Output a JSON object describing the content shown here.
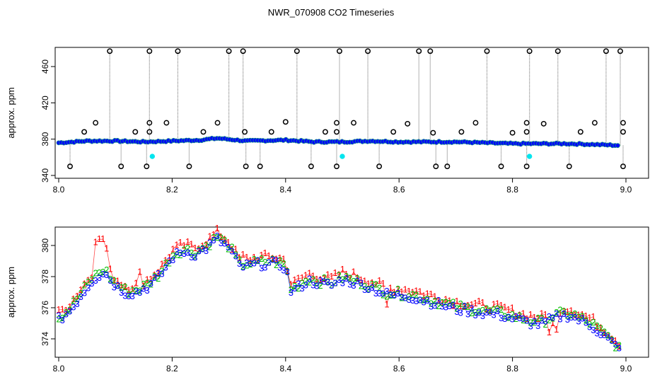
{
  "chart_data": [
    {
      "type": "scatter",
      "title": "NWR_070908  CO2 Timeseries",
      "xlabel": "",
      "ylabel": "approx. ppm",
      "xlim": [
        8.0,
        9.0
      ],
      "ylim": [
        340,
        478
      ],
      "xticks": [
        "8.0",
        "8.2",
        "8.4",
        "8.6",
        "8.8",
        "9.0"
      ],
      "yticks": [
        "340",
        "380",
        "420",
        "460"
      ],
      "grid": false,
      "baseline": {
        "x": [
          8.0,
          8.05,
          8.1,
          8.15,
          8.2,
          8.25,
          8.28,
          8.33,
          8.4,
          8.45,
          8.5,
          8.55,
          8.6,
          8.65,
          8.7,
          8.75,
          8.8,
          8.85,
          8.9,
          8.95,
          8.99
        ],
        "y": [
          376,
          378,
          378,
          377,
          378,
          379,
          381,
          378,
          379,
          377,
          377,
          378,
          377,
          377,
          377,
          376,
          375,
          375,
          375,
          374,
          373
        ]
      },
      "outliers_high": [
        8.09,
        8.16,
        8.21,
        8.3,
        8.325,
        8.42,
        8.495,
        8.545,
        8.635,
        8.655,
        8.755,
        8.83,
        8.88,
        8.965,
        8.99
      ],
      "outliers_low": [
        8.02,
        8.11,
        8.155,
        8.23,
        8.33,
        8.355,
        8.445,
        8.49,
        8.565,
        8.665,
        8.685,
        8.78,
        8.825,
        8.9,
        8.995
      ],
      "outliers_mid": [
        {
          "x": 8.045,
          "y": 388
        },
        {
          "x": 8.065,
          "y": 398
        },
        {
          "x": 8.135,
          "y": 388
        },
        {
          "x": 8.16,
          "y": 398
        },
        {
          "x": 8.16,
          "y": 388
        },
        {
          "x": 8.19,
          "y": 398
        },
        {
          "x": 8.255,
          "y": 388
        },
        {
          "x": 8.28,
          "y": 398
        },
        {
          "x": 8.328,
          "y": 388
        },
        {
          "x": 8.375,
          "y": 388
        },
        {
          "x": 8.4,
          "y": 399
        },
        {
          "x": 8.47,
          "y": 388
        },
        {
          "x": 8.49,
          "y": 398
        },
        {
          "x": 8.49,
          "y": 388
        },
        {
          "x": 8.52,
          "y": 398
        },
        {
          "x": 8.59,
          "y": 388
        },
        {
          "x": 8.615,
          "y": 397
        },
        {
          "x": 8.66,
          "y": 387
        },
        {
          "x": 8.71,
          "y": 388
        },
        {
          "x": 8.735,
          "y": 398
        },
        {
          "x": 8.8,
          "y": 387
        },
        {
          "x": 8.825,
          "y": 398
        },
        {
          "x": 8.825,
          "y": 388
        },
        {
          "x": 8.855,
          "y": 397
        },
        {
          "x": 8.92,
          "y": 388
        },
        {
          "x": 8.945,
          "y": 398
        },
        {
          "x": 8.995,
          "y": 398
        },
        {
          "x": 8.995,
          "y": 388
        }
      ],
      "cyan_points": [
        {
          "x": 8.165,
          "y": 361
        },
        {
          "x": 8.5,
          "y": 361
        },
        {
          "x": 8.83,
          "y": 361
        }
      ],
      "marker_colors": {
        "baseline_fill": "#0000ff",
        "baseline_edge": "#ff0000",
        "outlier": "#000000",
        "cyan": "#00e5ee",
        "spike": "#808080"
      }
    },
    {
      "type": "scatter",
      "title": "",
      "xlabel": "",
      "ylabel": "approx. ppm",
      "xlim": [
        8.0,
        9.0
      ],
      "ylim": [
        373.0,
        381.0
      ],
      "xticks": [
        "8.0",
        "8.2",
        "8.4",
        "8.6",
        "8.8",
        "9.0"
      ],
      "yticks": [
        "374",
        "376",
        "378",
        "380"
      ],
      "grid": false,
      "series": [
        {
          "name": "1",
          "label": "1",
          "color": "#ff0000"
        },
        {
          "name": "2",
          "label": "2",
          "color": "#00bb00"
        },
        {
          "name": "3",
          "label": "3",
          "color": "#0000ff"
        }
      ],
      "curve": {
        "x": [
          8.0,
          8.02,
          8.04,
          8.06,
          8.08,
          8.1,
          8.12,
          8.14,
          8.16,
          8.18,
          8.2,
          8.22,
          8.24,
          8.26,
          8.28,
          8.3,
          8.32,
          8.34,
          8.36,
          8.38,
          8.4,
          8.41,
          8.44,
          8.48,
          8.5,
          8.54,
          8.58,
          8.62,
          8.66,
          8.7,
          8.74,
          8.78,
          8.82,
          8.85,
          8.88,
          8.9,
          8.94,
          8.97,
          8.99
        ],
        "y": [
          375.4,
          376.0,
          377.0,
          378.0,
          378.5,
          377.6,
          377.1,
          377.2,
          377.6,
          378.3,
          379.4,
          379.8,
          379.6,
          380.0,
          380.6,
          380.0,
          378.8,
          378.9,
          379.0,
          379.0,
          378.8,
          377.2,
          377.9,
          377.6,
          378.0,
          377.6,
          377.0,
          376.9,
          376.5,
          376.1,
          375.9,
          375.7,
          375.3,
          375.1,
          375.6,
          375.7,
          375.0,
          374.1,
          373.4
        ]
      },
      "spikes": [
        {
          "x": 8.065,
          "y": 380.2
        },
        {
          "x": 8.075,
          "y": 380.4
        },
        {
          "x": 8.085,
          "y": 379.8
        },
        {
          "x": 8.145,
          "y": 378.3
        },
        {
          "x": 8.325,
          "y": 379.4
        },
        {
          "x": 8.52,
          "y": 378.3
        },
        {
          "x": 8.58,
          "y": 376.2
        },
        {
          "x": 8.87,
          "y": 375.0
        },
        {
          "x": 8.865,
          "y": 374.4
        },
        {
          "x": 8.88,
          "y": 374.6
        }
      ]
    }
  ]
}
